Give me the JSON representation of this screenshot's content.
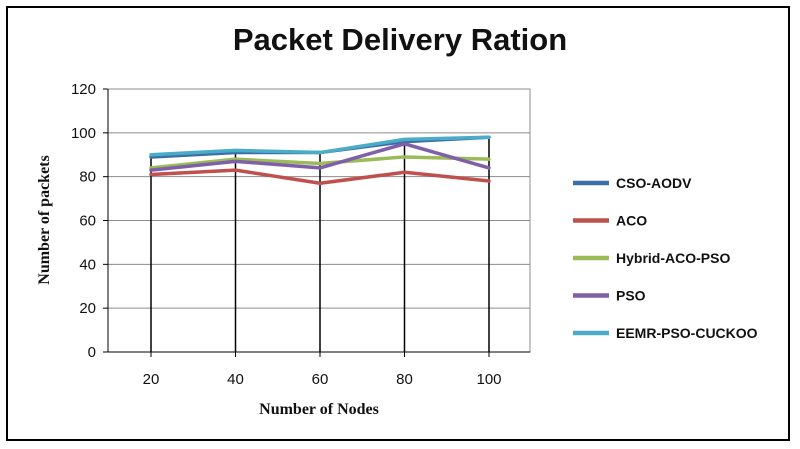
{
  "chart_data": {
    "type": "line",
    "title": "Packet Delivery Ration",
    "xlabel": "Number  of Nodes",
    "ylabel": "Number  of packets",
    "x": [
      20,
      40,
      60,
      80,
      100
    ],
    "ylim": [
      0,
      120
    ],
    "yticks": [
      0,
      20,
      40,
      60,
      80,
      100,
      120
    ],
    "grid": "horizontal",
    "legend": "right",
    "series": [
      {
        "name": "CSO-AODV",
        "color": "#3a6ea8",
        "values": [
          89,
          91,
          91,
          96,
          98
        ]
      },
      {
        "name": "ACO",
        "color": "#c0504d",
        "values": [
          81,
          83,
          77,
          82,
          78
        ]
      },
      {
        "name": "Hybrid-ACO-PSO",
        "color": "#9bbb59",
        "values": [
          84,
          88,
          86,
          89,
          88
        ]
      },
      {
        "name": "PSO",
        "color": "#7f5fa8",
        "values": [
          83,
          87,
          84,
          95,
          84
        ]
      },
      {
        "name": "EEMR-PSO-CUCKOO",
        "color": "#4bacc6",
        "values": [
          90,
          92,
          91,
          97,
          98
        ]
      }
    ]
  }
}
